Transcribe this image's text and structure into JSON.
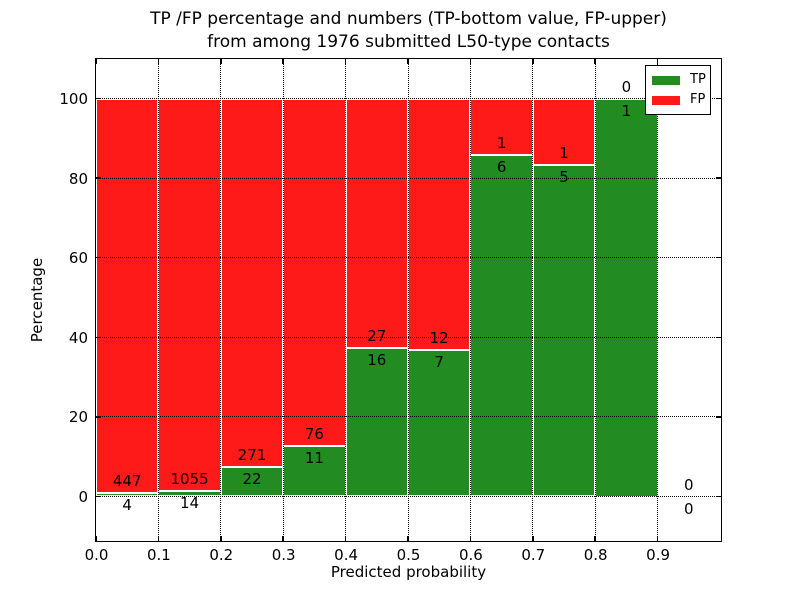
{
  "chart_data": {
    "type": "bar",
    "stacked": true,
    "normalized_to_percent": true,
    "title_line1": "TP /FP percentage and numbers (TP-bottom value, FP-upper)",
    "title_line2": "from among 1976 submitted L50-type contacts",
    "total_contacts": 1976,
    "xlabel": "Predicted probability",
    "ylabel": "Percentage",
    "xlim": [
      0.0,
      1.0
    ],
    "ylim": [
      -11,
      110
    ],
    "grid": true,
    "xticks": [
      "0.0",
      "0.1",
      "0.2",
      "0.3",
      "0.4",
      "0.5",
      "0.6",
      "0.7",
      "0.8",
      "0.9"
    ],
    "xtick_values": [
      0.0,
      0.1,
      0.2,
      0.3,
      0.4,
      0.5,
      0.6,
      0.7,
      0.8,
      0.9
    ],
    "yticks": [
      "0",
      "20",
      "40",
      "60",
      "80",
      "100"
    ],
    "ytick_values": [
      0,
      20,
      40,
      60,
      80,
      100
    ],
    "bin_edges": [
      0.0,
      0.1,
      0.2,
      0.3,
      0.4,
      0.5,
      0.6,
      0.7,
      0.8,
      0.9,
      1.0
    ],
    "series": [
      {
        "name": "TP",
        "color": "#228b22",
        "counts": [
          4,
          14,
          22,
          11,
          16,
          7,
          6,
          5,
          1,
          0
        ]
      },
      {
        "name": "FP",
        "color": "#ff1a1a",
        "counts": [
          447,
          1055,
          271,
          76,
          27,
          12,
          1,
          1,
          0,
          0
        ]
      }
    ],
    "tp_percent": [
      0.89,
      1.31,
      7.51,
      12.64,
      37.21,
      36.84,
      85.71,
      83.33,
      100.0,
      null
    ],
    "legend": {
      "position": "upper right",
      "entries": [
        {
          "label": "TP",
          "color": "#228b22"
        },
        {
          "label": "FP",
          "color": "#ff1a1a"
        }
      ]
    },
    "colors": {
      "background": "#ffffff",
      "frame": "#000000",
      "gridline": "#000000",
      "bar_edge": "#ffffff",
      "text": "#000000"
    }
  }
}
